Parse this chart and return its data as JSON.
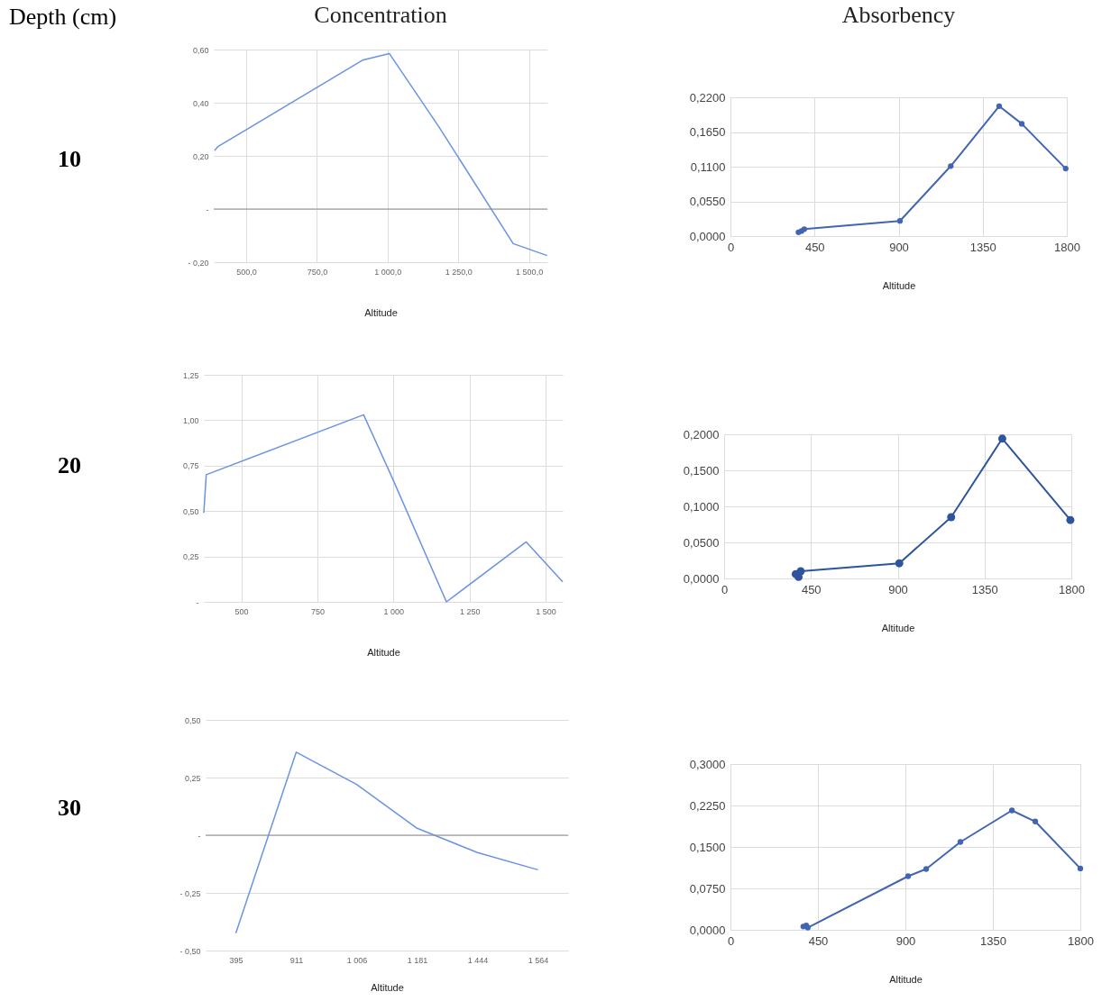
{
  "chart_data": [
    {
      "type": "other",
      "title": "Depth (cm)",
      "annotations": [
        "10",
        "20",
        "30"
      ]
    },
    {
      "type": "line",
      "title": "Concentration",
      "xlabel": "Altitude",
      "x": [
        388,
        400,
        911,
        1006,
        1181,
        1444,
        1564
      ],
      "series": [
        {
          "color": "#6b93e3",
          "values": [
            0.22,
            0.235,
            0.56,
            0.585,
            0.31,
            -0.13,
            -0.175
          ]
        }
      ],
      "xlim": [
        385,
        1565
      ],
      "xticks": [
        {
          "value": 500,
          "label": "500,0"
        },
        {
          "value": 750,
          "label": "750,0"
        },
        {
          "value": 1000,
          "label": "1 000,0"
        },
        {
          "value": 1250,
          "label": "1 250,0"
        },
        {
          "value": 1500,
          "label": "1 500,0"
        }
      ],
      "ylim": [
        -0.2,
        0.6
      ],
      "yticks": [
        {
          "value": -0.2,
          "label": "- 0,20"
        },
        {
          "value": 0,
          "label": "-"
        },
        {
          "value": 0.2,
          "label": "0,20"
        },
        {
          "value": 0.4,
          "label": "0,40"
        },
        {
          "value": 0.6,
          "label": "0,60"
        }
      ],
      "ref_lines": [
        {
          "axis": "y",
          "value": 0,
          "color": "#8c8c8c"
        }
      ],
      "grid": true
    },
    {
      "type": "line",
      "title": "Absorbency",
      "xlabel": "Altitude",
      "x": [
        364,
        380,
        395,
        907,
        1179,
        1438,
        1559,
        1794
      ],
      "series": [
        {
          "color": "#4265b3",
          "values": [
            0.006,
            0.008,
            0.011,
            0.024,
            0.111,
            0.206,
            0.178,
            0.107
          ]
        }
      ],
      "xlim": [
        0,
        1800
      ],
      "xticks": [
        0,
        450,
        900,
        1350,
        1800
      ],
      "ylim": [
        0,
        0.22
      ],
      "yticks": [
        {
          "value": 0,
          "label": "0,0000"
        },
        {
          "value": 0.055,
          "label": "0,0550"
        },
        {
          "value": 0.11,
          "label": "0,1100"
        },
        {
          "value": 0.165,
          "label": "0,1650"
        },
        {
          "value": 0.22,
          "label": "0,2200"
        }
      ],
      "marker": "circle",
      "grid": true
    },
    {
      "type": "line",
      "xlabel": "Altitude",
      "x": [
        377,
        385,
        902,
        994,
        1174,
        1436,
        1556
      ],
      "series": [
        {
          "color": "#6b93e3",
          "values": [
            0.49,
            0.7,
            1.03,
            0.69,
            0,
            0.33,
            0.11
          ]
        }
      ],
      "xlim": [
        377,
        1556
      ],
      "xticks": [
        500,
        750,
        {
          "value": 1000,
          "label": "1 000"
        },
        {
          "value": 1250,
          "label": "1 250"
        },
        {
          "value": 1500,
          "label": "1 500"
        }
      ],
      "ylim": [
        0,
        1.25
      ],
      "yticks": [
        {
          "value": 0,
          "label": "-"
        },
        {
          "value": 0.25,
          "label": "0,25"
        },
        {
          "value": 0.5,
          "label": "0,50"
        },
        {
          "value": 0.75,
          "label": "0,75"
        },
        {
          "value": 1,
          "label": "1,00"
        },
        {
          "value": 1.25,
          "label": "1,25"
        }
      ],
      "grid": true
    },
    {
      "type": "line",
      "xlabel": "Altitude",
      "x": [
        371,
        386,
        397,
        908,
        1177,
        1442,
        1795
      ],
      "series": [
        {
          "color": "#2f549e",
          "values": [
            0.006,
            0.002,
            0.01,
            0.021,
            0.085,
            0.194,
            0.081
          ]
        }
      ],
      "xlim": [
        0,
        1800
      ],
      "xticks": [
        0,
        450,
        900,
        1350,
        1800
      ],
      "ylim": [
        0,
        0.2
      ],
      "yticks": [
        {
          "value": 0,
          "label": "0,0000"
        },
        {
          "value": 0.05,
          "label": "0,0500"
        },
        {
          "value": 0.1,
          "label": "0,1000"
        },
        {
          "value": 0.15,
          "label": "0,1500"
        },
        {
          "value": 0.2,
          "label": "0,2000"
        }
      ],
      "marker": "circle",
      "grid": true
    },
    {
      "type": "line",
      "xlabel": "Altitude",
      "categories": [
        "395",
        "911",
        "1 006",
        "1 181",
        "1 444",
        "1 564"
      ],
      "series": [
        {
          "color": "#6b93e3",
          "values": [
            -0.425,
            0.36,
            0.22,
            0.03,
            -0.075,
            -0.15
          ]
        }
      ],
      "ylim": [
        -0.5,
        0.5
      ],
      "yticks": [
        {
          "value": -0.5,
          "label": "- 0,50"
        },
        {
          "value": -0.25,
          "label": "- 0,25"
        },
        {
          "value": 0,
          "label": "-"
        },
        {
          "value": 0.25,
          "label": "0,25"
        },
        {
          "value": 0.5,
          "label": "0,50"
        }
      ],
      "ref_lines": [
        {
          "axis": "y",
          "value": 0,
          "color": "#8c8c8c"
        }
      ],
      "grid": "y"
    },
    {
      "type": "line",
      "xlabel": "Altitude",
      "x": [
        375,
        390,
        398,
        914,
        1007,
        1183,
        1448,
        1568,
        1800
      ],
      "series": [
        {
          "color": "#4265b3",
          "values": [
            0.006,
            0.008,
            0.004,
            0.097,
            0.11,
            0.159,
            0.216,
            0.196,
            0.111
          ]
        }
      ],
      "xlim": [
        0,
        1800
      ],
      "xticks": [
        0,
        450,
        900,
        1350,
        1800
      ],
      "ylim": [
        0,
        0.3
      ],
      "yticks": [
        {
          "value": 0,
          "label": "0,0000"
        },
        {
          "value": 0.075,
          "label": "0,0750"
        },
        {
          "value": 0.15,
          "label": "0,1500"
        },
        {
          "value": 0.225,
          "label": "0,2250"
        },
        {
          "value": 0.3,
          "label": "0,3000"
        }
      ],
      "marker": "circle",
      "grid": true
    }
  ]
}
